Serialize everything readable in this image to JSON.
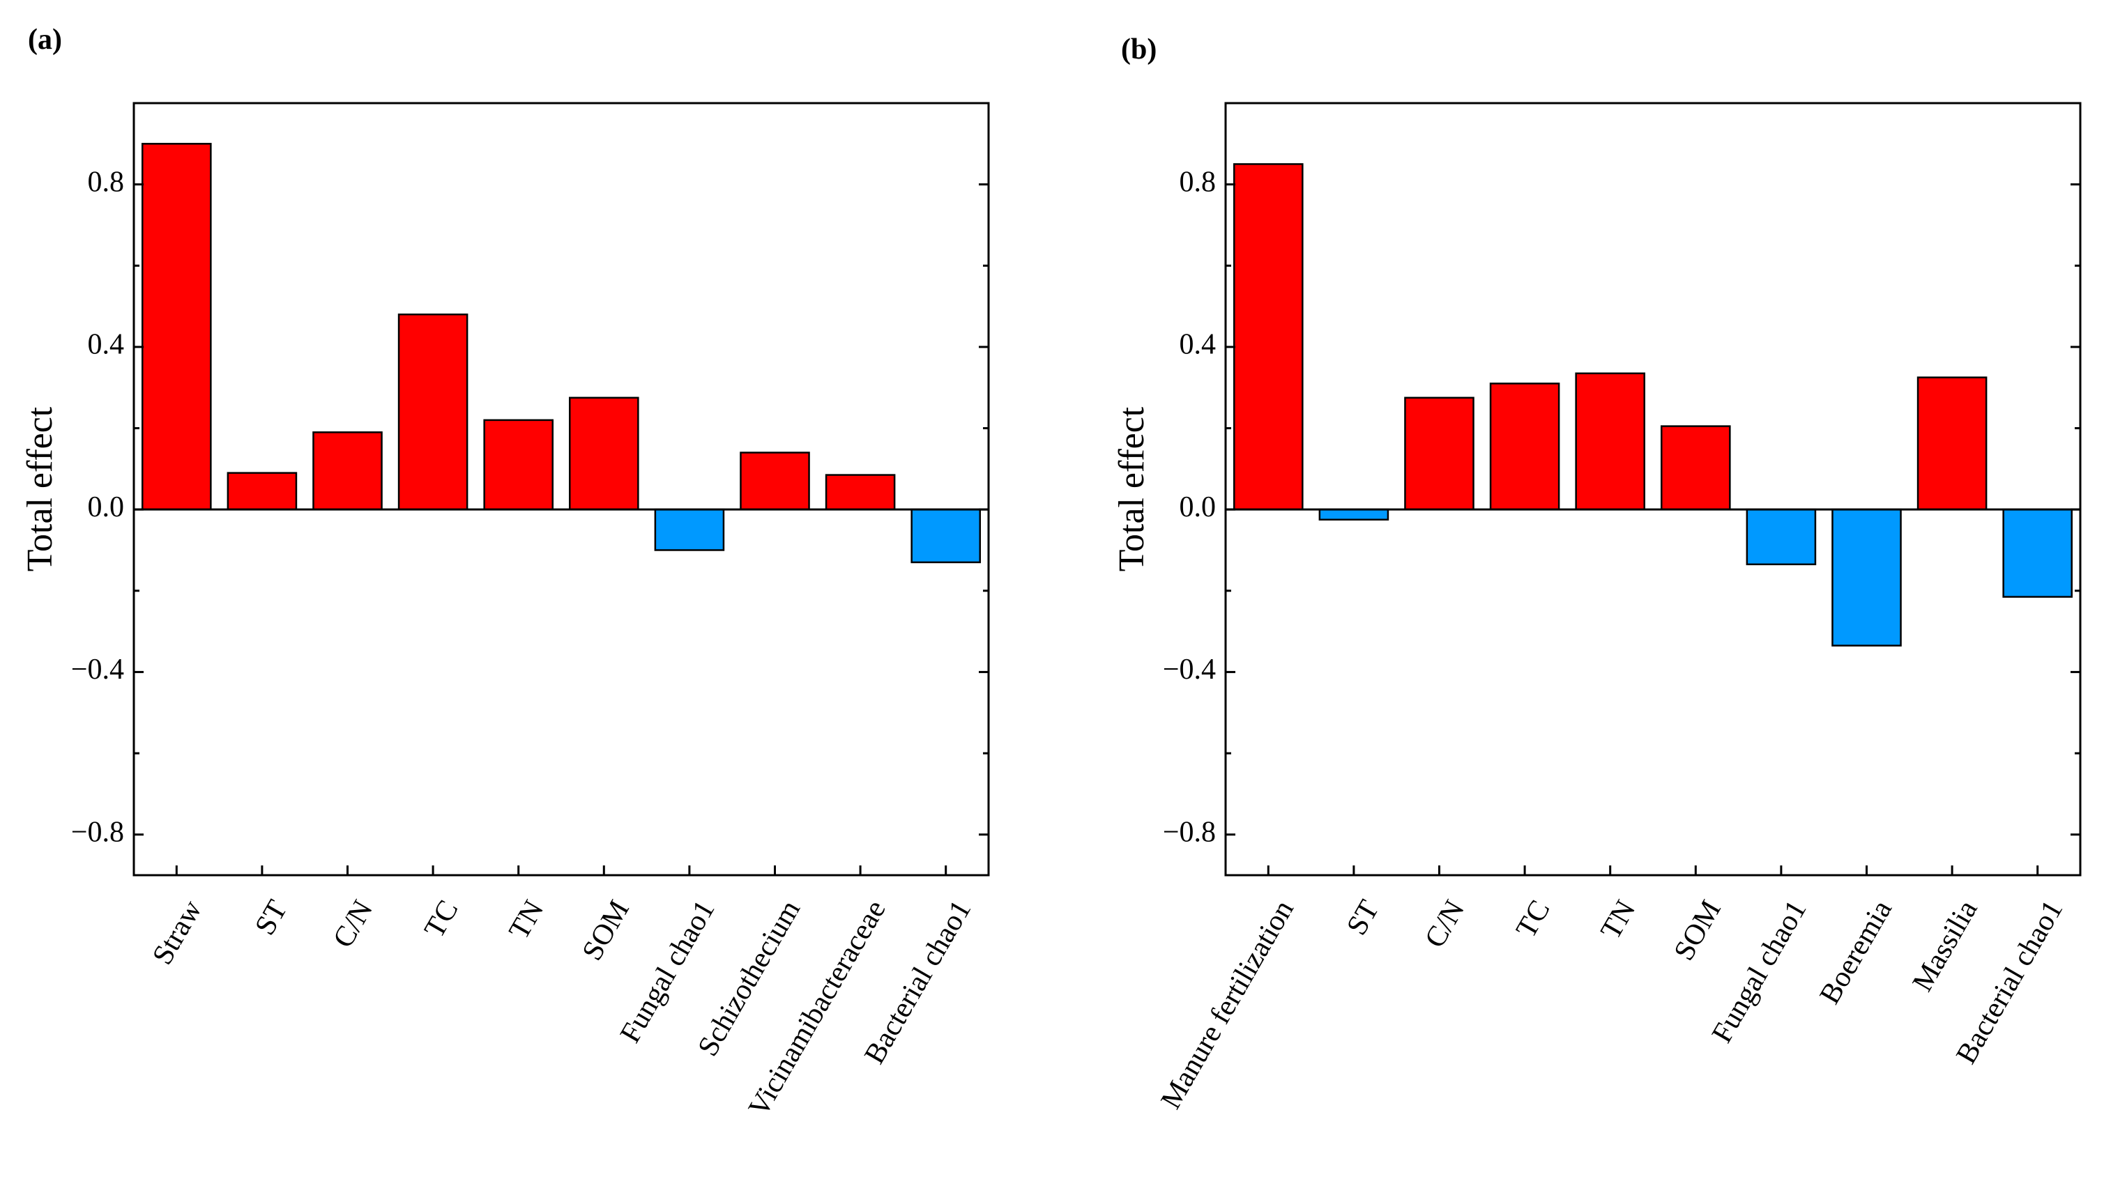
{
  "chart_data": [
    {
      "type": "bar",
      "panel_label": "(a)",
      "ylabel": "Total effect",
      "xlabel": "",
      "ylim": [
        -0.9,
        1.0
      ],
      "yticks": [
        {
          "value": 0.8,
          "label": "0.8"
        },
        {
          "value": 0.4,
          "label": "0.4"
        },
        {
          "value": 0.0,
          "label": "0.0"
        },
        {
          "value": -0.4,
          "label": "−0.4"
        },
        {
          "value": -0.8,
          "label": "−0.8"
        }
      ],
      "yminor": [
        0.6,
        0.2,
        -0.2,
        -0.6
      ],
      "categories": [
        "Straw",
        "ST",
        "C/N",
        "TC",
        "TN",
        "SOM",
        "Fungal chao1",
        "Schizothecium",
        "Vicinamibacteraceae",
        "Bacterial chao1"
      ],
      "values": [
        0.9,
        0.09,
        0.19,
        0.48,
        0.22,
        0.275,
        -0.1,
        0.14,
        0.085,
        -0.13
      ],
      "positive_color": "#ff0000",
      "negative_color": "#0099ff",
      "grid": false
    },
    {
      "type": "bar",
      "panel_label": "(b)",
      "ylabel": "Total effect",
      "xlabel": "",
      "ylim": [
        -0.9,
        1.0
      ],
      "yticks": [
        {
          "value": 0.8,
          "label": "0.8"
        },
        {
          "value": 0.4,
          "label": "0.4"
        },
        {
          "value": 0.0,
          "label": "0.0"
        },
        {
          "value": -0.4,
          "label": "−0.4"
        },
        {
          "value": -0.8,
          "label": "−0.8"
        }
      ],
      "yminor": [
        0.6,
        0.2,
        -0.2,
        -0.6
      ],
      "categories": [
        "Manure fertilization",
        "ST",
        "C/N",
        "TC",
        "TN",
        "SOM",
        "Fungal chao1",
        "Boeremia",
        "Massilia",
        "Bacterial chao1"
      ],
      "values": [
        0.85,
        -0.025,
        0.275,
        0.31,
        0.335,
        0.205,
        -0.135,
        -0.335,
        0.325,
        -0.215
      ],
      "positive_color": "#ff0000",
      "negative_color": "#0099ff",
      "grid": false
    }
  ]
}
